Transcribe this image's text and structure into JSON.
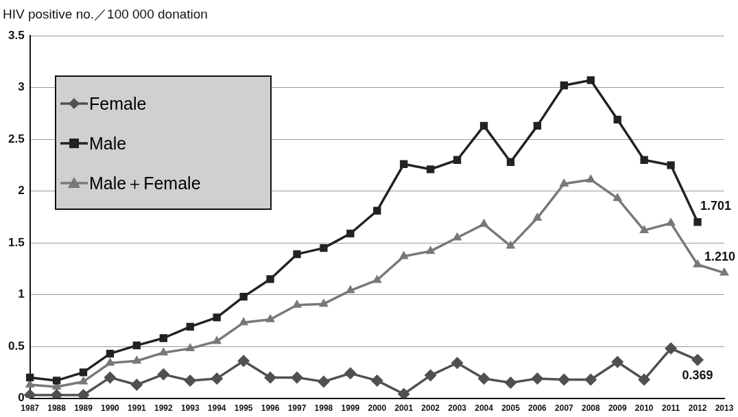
{
  "chart_data": {
    "type": "line",
    "ylabel": "HIV positive no.／100 000 donation",
    "categories": [
      "1987",
      "1988",
      "1989",
      "1990",
      "1991",
      "1992",
      "1993",
      "1994",
      "1995",
      "1996",
      "1997",
      "1998",
      "1999",
      "2000",
      "2001",
      "2002",
      "2003",
      "2004",
      "2005",
      "2006",
      "2007",
      "2008",
      "2009",
      "2010",
      "2011",
      "2012",
      "2013"
    ],
    "series": [
      {
        "name": "Female",
        "color": "#505050",
        "marker": "diamond",
        "values": [
          0.03,
          0.03,
          0.03,
          0.2,
          0.13,
          0.23,
          0.17,
          0.19,
          0.36,
          0.2,
          0.2,
          0.16,
          0.24,
          0.17,
          0.04,
          0.22,
          0.34,
          0.19,
          0.15,
          0.19,
          0.18,
          0.18,
          0.35,
          0.18,
          0.48,
          0.369,
          null
        ],
        "value_labels": [
          null,
          null,
          null,
          null,
          null,
          null,
          null,
          null,
          null,
          null,
          null,
          null,
          null,
          null,
          null,
          null,
          null,
          null,
          null,
          null,
          null,
          null,
          null,
          null,
          null,
          "0.369",
          null
        ]
      },
      {
        "name": "Male",
        "color": "#222222",
        "marker": "square",
        "values": [
          0.2,
          0.17,
          0.25,
          0.43,
          0.51,
          0.58,
          0.69,
          0.78,
          0.98,
          1.15,
          1.39,
          1.45,
          1.59,
          1.81,
          2.26,
          2.21,
          2.3,
          2.63,
          2.28,
          2.63,
          3.02,
          3.07,
          2.69,
          2.3,
          2.25,
          1.701,
          null
        ],
        "value_labels": [
          null,
          null,
          null,
          null,
          null,
          null,
          null,
          null,
          null,
          null,
          null,
          null,
          null,
          null,
          null,
          null,
          null,
          null,
          null,
          null,
          null,
          null,
          null,
          null,
          null,
          "1.701",
          null
        ]
      },
      {
        "name": "Male＋Female",
        "color": "#787878",
        "marker": "triangle",
        "values": [
          0.13,
          0.11,
          0.16,
          0.34,
          0.36,
          0.44,
          0.48,
          0.55,
          0.73,
          0.76,
          0.9,
          0.91,
          1.04,
          1.14,
          1.37,
          1.42,
          1.55,
          1.68,
          1.47,
          1.74,
          2.07,
          2.11,
          1.93,
          1.62,
          1.69,
          1.29,
          1.21
        ],
        "value_labels": [
          null,
          null,
          null,
          null,
          null,
          null,
          null,
          null,
          null,
          null,
          null,
          null,
          null,
          null,
          null,
          null,
          null,
          null,
          null,
          null,
          null,
          null,
          null,
          null,
          null,
          null,
          "1.210"
        ]
      }
    ],
    "ylim": [
      0,
      3.5
    ],
    "yticks": [
      0,
      0.5,
      1,
      1.5,
      2,
      2.5,
      3,
      3.5
    ],
    "grid": "y",
    "legend": "top left",
    "line_style": "solid"
  }
}
